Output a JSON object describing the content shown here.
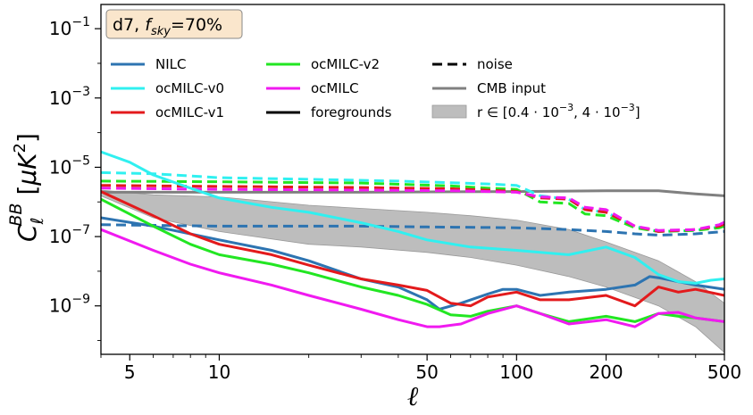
{
  "chart_data": {
    "type": "line",
    "title": "",
    "annotation": "d7, f_sky=70%",
    "annotation_parts": {
      "main": "d7, ",
      "f": "f",
      "sub": "sky",
      "rest": "=70%"
    },
    "xlabel": "ℓ",
    "ylabel": "C_ℓ^BB [μK²]",
    "ylabel_parts": {
      "C": "C",
      "sub": "ℓ",
      "sup": "BB",
      "unit_open": " [",
      "mu": "μ",
      "K": "K",
      "two": "2",
      "unit_close": "]"
    },
    "x_scale": "log",
    "y_scale": "log",
    "xlim": [
      4,
      500
    ],
    "ylim": [
      4e-11,
      0.5
    ],
    "x_ticks": [
      {
        "value": 5,
        "label": "5"
      },
      {
        "value": 10,
        "label": "10"
      },
      {
        "value": 50,
        "label": "50"
      },
      {
        "value": 100,
        "label": "100"
      },
      {
        "value": 200,
        "label": "200"
      },
      {
        "value": 500,
        "label": "500"
      }
    ],
    "y_ticks": [
      {
        "value": 1e-09,
        "base": "10",
        "exp": "−9"
      },
      {
        "value": 1e-07,
        "base": "10",
        "exp": "−7"
      },
      {
        "value": 1e-05,
        "base": "10",
        "exp": "−5"
      },
      {
        "value": 0.001,
        "base": "10",
        "exp": "−3"
      },
      {
        "value": 0.1,
        "base": "10",
        "exp": "−1"
      }
    ],
    "grid": false,
    "legend_position": "top",
    "legend": [
      {
        "label": "NILC",
        "color": "#2d74b1",
        "style": "solid"
      },
      {
        "label": "ocMILC-v0",
        "color": "#30f0f0",
        "style": "solid"
      },
      {
        "label": "ocMILC-v1",
        "color": "#e31a1c",
        "style": "solid"
      },
      {
        "label": "ocMILC-v2",
        "color": "#22e622",
        "style": "solid"
      },
      {
        "label": "ocMILC",
        "color": "#f01af0",
        "style": "solid"
      },
      {
        "label": "foregrounds",
        "color": "#000000",
        "style": "solid"
      },
      {
        "label": "noise",
        "color": "#000000",
        "style": "dashed"
      },
      {
        "label": "CMB input",
        "color": "#808080",
        "style": "solid"
      },
      {
        "label": "r ∈ [0.4 · 10⁻³, 4 · 10⁻³]",
        "label_parts": {
          "a": "r ∈ [0.4 · 10",
          "e1": "−3",
          "b": ", 4 · 10",
          "e2": "−3",
          "c": "]"
        },
        "color": "#bdbdbd",
        "style": "band"
      }
    ],
    "band": {
      "name": "r ∈ [0.4 · 10⁻³, 4 · 10⁻³]",
      "x": [
        4,
        6,
        10,
        20,
        30,
        50,
        70,
        100,
        150,
        200,
        300,
        400,
        500
      ],
      "lower": [
        1.5e-06,
        3.5e-07,
        1.4e-07,
        6e-08,
        5e-08,
        3.5e-08,
        2.5e-08,
        1.5e-08,
        7e-09,
        3.5e-09,
        1e-09,
        2.5e-10,
        4.5e-11
      ],
      "upper": [
        2.2e-06,
        1.6e-06,
        1.4e-06,
        8e-07,
        6.5e-07,
        5e-07,
        4e-07,
        3e-07,
        1.6e-07,
        7e-08,
        2e-08,
        5e-09,
        1.2e-09
      ]
    },
    "series": [
      {
        "name": "CMB input",
        "color": "#808080",
        "style": "solid",
        "x": [
          4,
          10,
          30,
          100,
          200,
          300,
          400,
          500
        ],
        "y": [
          1.9e-06,
          1.9e-06,
          1.9e-06,
          2e-06,
          2.1e-06,
          2.1e-06,
          1.7e-06,
          1.5e-06
        ]
      },
      {
        "name": "NILC noise",
        "color": "#2d74b1",
        "style": "dashed",
        "x": [
          4,
          10,
          30,
          50,
          100,
          150,
          200,
          250,
          300,
          400,
          500
        ],
        "y": [
          2.2e-07,
          2e-07,
          2e-07,
          1.9e-07,
          1.8e-07,
          1.6e-07,
          1.4e-07,
          1.2e-07,
          1.1e-07,
          1.2e-07,
          1.4e-07
        ]
      },
      {
        "name": "ocMILC-v0 noise",
        "color": "#30f0f0",
        "style": "dashed",
        "x": [
          4,
          6,
          10,
          20,
          40,
          60,
          80,
          100,
          120,
          150,
          170,
          200,
          250,
          300,
          400,
          480,
          500
        ],
        "y": [
          7e-06,
          6.5e-06,
          5e-06,
          4.5e-06,
          4e-06,
          3.6e-06,
          3.3e-06,
          3e-06,
          1.5e-06,
          1.2e-06,
          6e-07,
          5e-07,
          2e-07,
          1.4e-07,
          1.5e-07,
          1.9e-07,
          2.4e-07
        ]
      },
      {
        "name": "ocMILC-v2 noise",
        "color": "#22e622",
        "style": "dashed",
        "x": [
          4,
          10,
          30,
          60,
          80,
          100,
          120,
          150,
          170,
          200,
          250,
          300,
          400,
          480,
          500
        ],
        "y": [
          4e-06,
          3.8e-06,
          3.5e-06,
          2.9e-06,
          2.5e-06,
          2.3e-06,
          1e-06,
          9e-07,
          4.5e-07,
          4e-07,
          1.8e-07,
          1.4e-07,
          1.5e-07,
          1.8e-07,
          2e-07
        ]
      },
      {
        "name": "ocMILC-v1 noise",
        "color": "#e31a1c",
        "style": "dashed",
        "x": [
          4,
          10,
          30,
          60,
          80,
          100,
          120,
          150,
          170,
          200,
          250,
          300,
          400,
          480,
          500
        ],
        "y": [
          3e-06,
          2.8e-06,
          2.6e-06,
          2.4e-06,
          2.2e-06,
          2e-06,
          1.3e-06,
          1.2e-06,
          6e-07,
          5e-07,
          2e-07,
          1.4e-07,
          1.6e-07,
          2e-07,
          2.3e-07
        ]
      },
      {
        "name": "ocMILC noise",
        "color": "#f01af0",
        "style": "dashed",
        "x": [
          4,
          10,
          30,
          60,
          80,
          100,
          120,
          150,
          170,
          200,
          250,
          300,
          400,
          480,
          500
        ],
        "y": [
          2.5e-06,
          2.3e-06,
          2.2e-06,
          2.1e-06,
          2e-06,
          1.9e-06,
          1.4e-06,
          1.3e-06,
          7e-07,
          6e-07,
          2e-07,
          1.5e-07,
          1.6e-07,
          2.2e-07,
          2.6e-07
        ]
      },
      {
        "name": "NILC",
        "color": "#2d74b1",
        "style": "solid",
        "x": [
          4,
          6,
          10,
          15,
          20,
          30,
          40,
          50,
          55,
          65,
          80,
          90,
          100,
          120,
          150,
          200,
          250,
          280,
          300,
          350,
          400,
          500
        ],
        "y": [
          3.5e-07,
          2e-07,
          8e-08,
          4e-08,
          2e-08,
          6e-09,
          3.5e-09,
          1.5e-09,
          8e-10,
          1.2e-09,
          2.2e-09,
          3e-09,
          3e-09,
          2e-09,
          2.5e-09,
          3e-09,
          4e-09,
          7e-09,
          6.5e-09,
          5e-09,
          4e-09,
          3e-09
        ]
      },
      {
        "name": "ocMILC-v0",
        "color": "#30f0f0",
        "style": "solid",
        "x": [
          4,
          5,
          6,
          8,
          10,
          15,
          20,
          30,
          40,
          50,
          70,
          100,
          150,
          200,
          250,
          300,
          350,
          400,
          450,
          500
        ],
        "y": [
          2.8e-05,
          1.4e-05,
          6e-06,
          2.5e-06,
          1.3e-06,
          7e-07,
          5e-07,
          2.5e-07,
          1.4e-07,
          8e-08,
          5e-08,
          4e-08,
          3e-08,
          5e-08,
          2.5e-08,
          8e-09,
          5e-09,
          4.5e-09,
          5.5e-09,
          6e-09
        ]
      },
      {
        "name": "ocMILC-v1",
        "color": "#e31a1c",
        "style": "solid",
        "x": [
          4,
          6,
          8,
          10,
          15,
          20,
          30,
          40,
          50,
          60,
          70,
          80,
          100,
          120,
          150,
          200,
          250,
          300,
          350,
          400,
          500
        ],
        "y": [
          2e-06,
          4e-07,
          1.2e-07,
          6e-08,
          3e-08,
          1.5e-08,
          6e-09,
          4e-09,
          2.8e-09,
          1.2e-09,
          1e-09,
          1.8e-09,
          2.5e-09,
          1.5e-09,
          1.5e-09,
          2e-09,
          1e-09,
          3.5e-09,
          2.5e-09,
          3e-09,
          2e-09
        ]
      },
      {
        "name": "ocMILC-v2",
        "color": "#22e622",
        "style": "solid",
        "x": [
          4,
          6,
          8,
          10,
          15,
          20,
          30,
          40,
          50,
          60,
          70,
          80,
          100,
          120,
          150,
          200,
          250,
          300,
          350,
          400,
          500
        ],
        "y": [
          1.2e-06,
          2e-07,
          6e-08,
          3e-08,
          1.6e-08,
          9e-09,
          3.5e-09,
          2e-09,
          1.1e-09,
          5.5e-10,
          5e-10,
          7e-10,
          1e-09,
          6e-10,
          3.5e-10,
          5e-10,
          3.5e-10,
          6e-10,
          5e-10,
          4.5e-10,
          3.5e-10
        ]
      },
      {
        "name": "ocMILC",
        "color": "#f01af0",
        "style": "solid",
        "x": [
          4,
          6,
          8,
          10,
          15,
          20,
          30,
          40,
          50,
          55,
          65,
          80,
          100,
          120,
          150,
          200,
          250,
          300,
          350,
          400,
          500
        ],
        "y": [
          1.6e-07,
          4e-08,
          1.6e-08,
          9e-09,
          4e-09,
          2e-09,
          8e-10,
          4e-10,
          2.5e-10,
          2.5e-10,
          3e-10,
          6e-10,
          1e-09,
          6e-10,
          3e-10,
          4e-10,
          2.5e-10,
          6e-10,
          6.5e-10,
          4.5e-10,
          3.5e-10
        ]
      }
    ]
  }
}
